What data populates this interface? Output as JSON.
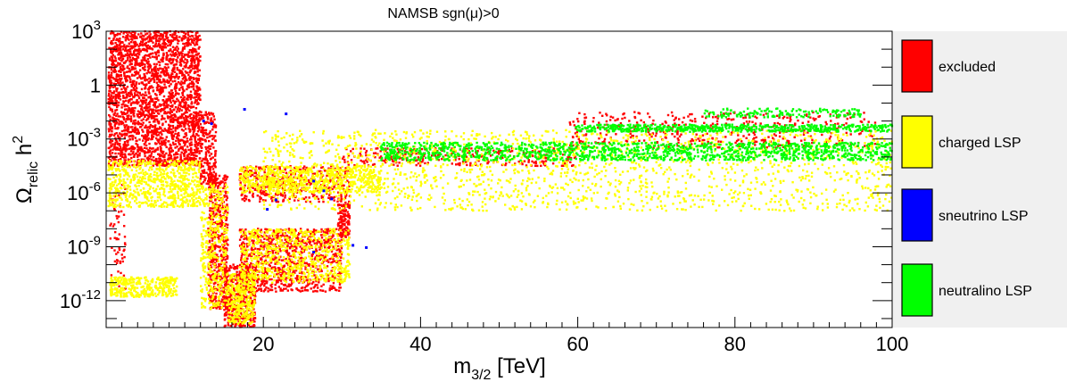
{
  "chart_data": {
    "type": "scatter",
    "title": "NAMSB    sgn(μ)>0",
    "xlabel": {
      "main": "m",
      "sub": "3/2",
      "rest": " [TeV]"
    },
    "ylabel": {
      "main": "Ω",
      "sub": "relic",
      "mid": " h",
      "sup": "2"
    },
    "x_range": [
      0,
      100
    ],
    "y_range_log10": [
      -13.5,
      3
    ],
    "x_ticks": [
      {
        "value": 20,
        "label": "20"
      },
      {
        "value": 40,
        "label": "40"
      },
      {
        "value": 60,
        "label": "60"
      },
      {
        "value": 80,
        "label": "80"
      },
      {
        "value": 100,
        "label": "100"
      }
    ],
    "y_ticks": [
      {
        "exp": 3,
        "base": "10",
        "sup": "3"
      },
      {
        "exp": 0,
        "base": "1",
        "sup": ""
      },
      {
        "exp": -3,
        "base": "10",
        "sup": "-3"
      },
      {
        "exp": -6,
        "base": "10",
        "sup": "-6"
      },
      {
        "exp": -9,
        "base": "10",
        "sup": "-9"
      },
      {
        "exp": -12,
        "base": "10",
        "sup": "-12"
      }
    ],
    "grid": false,
    "legend_position": "right",
    "series": [
      {
        "name": "excluded",
        "color": "#ff0000",
        "regions": [
          {
            "x": [
              0.3,
              12
            ],
            "log10_y": [
              -4.5,
              3
            ],
            "n": 2600
          },
          {
            "x": [
              12,
              14
            ],
            "log10_y": [
              -5.5,
              -1.5
            ],
            "n": 200
          },
          {
            "x": [
              13,
              15.5
            ],
            "log10_y": [
              -12.5,
              -5
            ],
            "n": 500
          },
          {
            "x": [
              15,
              19
            ],
            "log10_y": [
              -13.5,
              -10
            ],
            "n": 450
          },
          {
            "x": [
              17,
              30
            ],
            "log10_y": [
              -11.5,
              -8
            ],
            "n": 900
          },
          {
            "x": [
              29.5,
              31
            ],
            "log10_y": [
              -8.5,
              -6.5
            ],
            "n": 120
          },
          {
            "x": [
              17,
              31
            ],
            "log10_y": [
              -6.5,
              -4.5
            ],
            "n": 450
          },
          {
            "x": [
              30,
              60
            ],
            "log10_y": [
              -4.5,
              -3.5
            ],
            "n": 300
          },
          {
            "x": [
              59,
              98
            ],
            "log10_y": [
              -3.5,
              -1.5
            ],
            "n": 450
          },
          {
            "x": [
              0.5,
              2.5
            ],
            "log10_y": [
              -11.5,
              -5.5
            ],
            "n": 60
          }
        ]
      },
      {
        "name": "charged LSP",
        "color": "#ffff00",
        "regions": [
          {
            "x": [
              0.3,
              12
            ],
            "log10_y": [
              -6.8,
              -4.2
            ],
            "n": 700
          },
          {
            "x": [
              0.5,
              9
            ],
            "log10_y": [
              -11.8,
              -10.7
            ],
            "n": 350
          },
          {
            "x": [
              12,
              15.5
            ],
            "log10_y": [
              -12.5,
              -5.5
            ],
            "n": 400
          },
          {
            "x": [
              15.5,
              19
            ],
            "log10_y": [
              -13.3,
              -10.5
            ],
            "n": 300
          },
          {
            "x": [
              17,
              31
            ],
            "log10_y": [
              -11,
              -8
            ],
            "n": 700
          },
          {
            "x": [
              17,
              35
            ],
            "log10_y": [
              -6,
              -4.5
            ],
            "n": 700
          },
          {
            "x": [
              20,
              100
            ],
            "log10_y": [
              -7,
              -2.5
            ],
            "n": 1800
          }
        ]
      },
      {
        "name": "sneutrino LSP",
        "color": "#0000ff",
        "points": [
          {
            "x": 12.4,
            "y": 0.01
          },
          {
            "x": 13.4,
            "y": 0.0071
          },
          {
            "x": 17.6,
            "y": 0.045
          },
          {
            "x": 22.9,
            "y": 0.025
          },
          {
            "x": 20.5,
            "y": 1.2e-07
          },
          {
            "x": 21.6,
            "y": 4e-07
          },
          {
            "x": 26.4,
            "y": 4.5e-06
          },
          {
            "x": 27.7,
            "y": 1.3e-06
          },
          {
            "x": 28.7,
            "y": 4.6e-07
          },
          {
            "x": 26.4,
            "y": 5e-10
          },
          {
            "x": 31.4,
            "y": 1.2e-09
          },
          {
            "x": 33.1,
            "y": 9e-10
          }
        ]
      },
      {
        "name": "neutralino LSP",
        "color": "#00ff00",
        "regions": [
          {
            "x": [
              35,
              100
            ],
            "log10_y": [
              -4.2,
              -3.2
            ],
            "n": 1400
          },
          {
            "x": [
              59.5,
              100
            ],
            "log10_y": [
              -2.6,
              -2.2
            ],
            "n": 600
          },
          {
            "x": [
              76,
              96
            ],
            "log10_y": [
              -1.8,
              -1.3
            ],
            "n": 150
          }
        ]
      }
    ]
  }
}
